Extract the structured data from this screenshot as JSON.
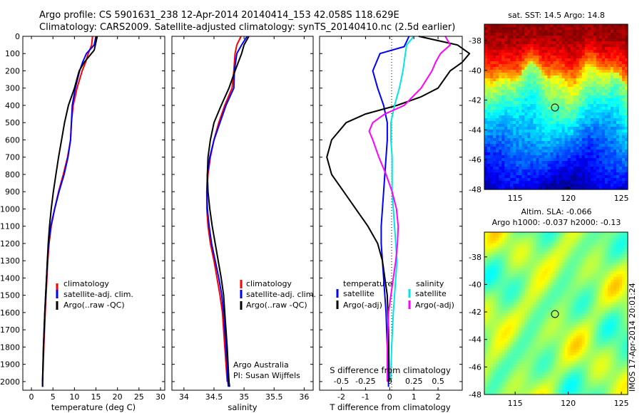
{
  "title_line1": "Argo profile: CS 5901631_238 12-Apr-2014 20140414_153 42.058S 118.629E",
  "title_line2": "Climatology: CARS2009. Satellite-adjusted climatology: synTS_20140410.nc (2.5d earlier)",
  "side_stamp": "IMOS 17-Apr-2014 20:01:24",
  "colors": {
    "climatology": "#ff0000",
    "satellite": "#0000ff",
    "argo": "#000000",
    "salinity_satellite": "#00e5e5",
    "salinity_argo": "#ff00ff"
  },
  "chart_data": [
    {
      "type": "line",
      "panel": "temperature",
      "xlabel": "temperature (deg C)",
      "xlim": [
        -2,
        31
      ],
      "ylim": [
        0,
        2050
      ],
      "xticks": [
        "0",
        "5",
        "10",
        "15",
        "20",
        "25",
        "30"
      ],
      "xtick_values": [
        0,
        5,
        10,
        15,
        20,
        25,
        30
      ],
      "yticks": [
        "0",
        "100",
        "200",
        "300",
        "400",
        "500",
        "600",
        "700",
        "800",
        "900",
        "1000",
        "1100",
        "1200",
        "1300",
        "1400",
        "1500",
        "1600",
        "1700",
        "1800",
        "1900",
        "2000"
      ],
      "ytick_values": [
        0,
        100,
        200,
        300,
        400,
        500,
        600,
        700,
        800,
        900,
        1000,
        1100,
        1200,
        1300,
        1400,
        1500,
        1600,
        1700,
        1800,
        1900,
        2000
      ],
      "legend": [
        "climatology",
        "satellite-adj. clim.",
        "Argo(..raw -QC)"
      ],
      "series": [
        {
          "name": "climatology",
          "color": "#ff0000",
          "depth": [
            0,
            50,
            100,
            150,
            200,
            300,
            400,
            500,
            600,
            700,
            800,
            900,
            1000,
            1100,
            1200,
            1300,
            1400,
            1500,
            1600,
            1800,
            2000
          ],
          "values": [
            14.2,
            14.0,
            13.2,
            12.6,
            11.8,
            10.6,
            9.7,
            9.3,
            9.1,
            8.4,
            7.4,
            6.3,
            5.4,
            4.6,
            4.1,
            3.8,
            3.6,
            3.4,
            3.2,
            2.9,
            2.6
          ]
        },
        {
          "name": "satellite-adj. clim.",
          "color": "#0000ff",
          "depth": [
            0,
            50,
            100,
            150,
            200,
            300,
            400,
            500,
            600,
            700,
            800,
            900,
            1000,
            1100,
            1200,
            1300,
            1400,
            1500,
            1600,
            1800,
            2000,
            2030
          ],
          "values": [
            15.0,
            14.6,
            12.8,
            11.9,
            11.2,
            10.2,
            9.5,
            9.3,
            9.1,
            8.5,
            7.6,
            6.4,
            5.4,
            4.5,
            4.0,
            3.7,
            3.5,
            3.3,
            3.1,
            2.8,
            2.6,
            2.6
          ]
        },
        {
          "name": "Argo(..raw -QC)",
          "color": "#000000",
          "depth": [
            0,
            80,
            150,
            200,
            300,
            400,
            500,
            600,
            700,
            800,
            900,
            1000,
            1100,
            1200,
            1300,
            1400,
            1500,
            1600,
            1800,
            2000,
            2030
          ],
          "values": [
            15.3,
            14.6,
            12.3,
            11.1,
            10.0,
            8.6,
            7.7,
            7.0,
            6.3,
            5.7,
            5.1,
            4.6,
            4.2,
            3.9,
            3.7,
            3.5,
            3.3,
            3.1,
            2.8,
            2.6,
            2.6
          ]
        }
      ]
    },
    {
      "type": "line",
      "panel": "salinity",
      "xlabel": "salinity",
      "xlim": [
        33.8,
        36.15
      ],
      "ylim": [
        0,
        2050
      ],
      "xticks": [
        "34",
        "34.5",
        "35",
        "35.5",
        "36"
      ],
      "xtick_values": [
        34,
        34.5,
        35,
        35.5,
        36
      ],
      "legend": [
        "climatology",
        "satellite-adj. clim.",
        "Argo(..raw -QC)"
      ],
      "annotations": [
        "Argo Australia",
        "PI: Susan Wijffels"
      ],
      "series": [
        {
          "name": "climatology",
          "color": "#ff0000",
          "depth": [
            0,
            50,
            100,
            200,
            300,
            400,
            500,
            600,
            700,
            800,
            900,
            1000,
            1100,
            1200,
            1300,
            1400,
            1500,
            1600,
            1800,
            2000
          ],
          "values": [
            34.95,
            34.88,
            34.85,
            34.83,
            34.8,
            34.68,
            34.58,
            34.5,
            34.44,
            34.4,
            34.38,
            34.38,
            34.4,
            34.44,
            34.5,
            34.55,
            34.6,
            34.64,
            34.68,
            34.72
          ]
        },
        {
          "name": "satellite-adj. clim.",
          "color": "#0000ff",
          "depth": [
            0,
            50,
            100,
            200,
            300,
            400,
            500,
            600,
            700,
            800,
            900,
            1000,
            1100,
            1200,
            1300,
            1400,
            1500,
            1600,
            1800,
            2000,
            2030
          ],
          "values": [
            35.05,
            34.96,
            34.88,
            34.84,
            34.83,
            34.7,
            34.6,
            34.5,
            34.43,
            34.39,
            34.38,
            34.39,
            34.42,
            34.46,
            34.52,
            34.58,
            34.63,
            34.66,
            34.7,
            34.73,
            34.74
          ]
        },
        {
          "name": "Argo(..raw -QC)",
          "color": "#000000",
          "depth": [
            0,
            50,
            100,
            200,
            300,
            400,
            500,
            600,
            700,
            800,
            900,
            1000,
            1100,
            1200,
            1300,
            1400,
            1500,
            1600,
            1800,
            2000,
            2030
          ],
          "values": [
            35.08,
            35.0,
            34.96,
            34.85,
            34.75,
            34.62,
            34.5,
            34.44,
            34.4,
            34.39,
            34.4,
            34.43,
            34.47,
            34.52,
            34.57,
            34.62,
            34.66,
            34.68,
            34.72,
            34.75,
            34.76
          ]
        }
      ]
    },
    {
      "type": "line",
      "panel": "difference",
      "xlabel": "T difference from climatology",
      "xlabel_top": "S difference from climatology",
      "xlim": [
        -2.9,
        3.0
      ],
      "ylim": [
        0,
        2050
      ],
      "xticks": [
        "-2",
        "-1",
        "0",
        "1",
        "2"
      ],
      "xtick_values": [
        -2,
        -1,
        0,
        1,
        2
      ],
      "sticks_top": [
        "-0.5",
        "-0.25",
        "0",
        "0.25",
        "0.5"
      ],
      "stick_positions": [
        -2,
        -1,
        0,
        1,
        2
      ],
      "legend_titles": [
        "temperature",
        "salinity"
      ],
      "legend": [
        "satellite",
        "Argo(-adj)",
        "satellite",
        "Argo(-adj)"
      ],
      "series": [
        {
          "name": "temperature satellite",
          "color": "#0000ff",
          "depth": [
            0,
            60,
            100,
            200,
            300,
            400,
            500,
            600,
            700,
            800,
            900,
            1000,
            1100,
            1200,
            1300,
            1400,
            1500,
            1600,
            1800,
            2000,
            2030
          ],
          "values": [
            0.8,
            0.6,
            -0.4,
            -0.7,
            -0.5,
            -0.25,
            -0.1,
            -0.1,
            -0.15,
            -0.2,
            -0.25,
            -0.3,
            -0.35,
            -0.35,
            -0.3,
            -0.25,
            -0.2,
            -0.15,
            -0.1,
            -0.05,
            -0.05
          ]
        },
        {
          "name": "temperature Argo(-adj)",
          "color": "#000000",
          "depth": [
            0,
            50,
            100,
            150,
            200,
            300,
            350,
            400,
            450,
            500,
            600,
            700,
            800,
            900,
            1000,
            1100,
            1200,
            1300,
            1400,
            1500,
            1700,
            2000
          ],
          "values": [
            1.2,
            2.8,
            3.3,
            3.0,
            2.5,
            2.0,
            1.3,
            0.3,
            -1.0,
            -1.8,
            -2.4,
            -2.6,
            -2.4,
            -1.9,
            -1.4,
            -0.9,
            -0.5,
            -0.3,
            -0.2,
            -0.1,
            -0.05,
            -0.02
          ]
        },
        {
          "name": "salinity satellite",
          "color": "#00e5e5",
          "depth": [
            0,
            50,
            100,
            200,
            300,
            400,
            500,
            600,
            700,
            800,
            900,
            1000,
            1100,
            1200,
            1300,
            1400,
            1500,
            1600,
            1800,
            2000
          ],
          "values": [
            1.0,
            0.7,
            0.65,
            0.55,
            0.4,
            0.2,
            0.05,
            0.05,
            0.1,
            0.1,
            0.1,
            0.15,
            0.2,
            0.25,
            0.3,
            0.25,
            0.2,
            0.15,
            0.08,
            0.04
          ]
        },
        {
          "name": "salinity Argo(-adj)",
          "color": "#ff00ff",
          "depth": [
            0,
            50,
            100,
            150,
            200,
            300,
            400,
            450,
            500,
            550,
            600,
            700,
            800,
            900,
            1000,
            1100,
            1200,
            1300,
            1400,
            1500,
            1600,
            1800,
            2000
          ],
          "values": [
            2.3,
            2.5,
            2.1,
            1.9,
            1.75,
            1.3,
            0.6,
            -0.2,
            -0.7,
            -0.85,
            -0.7,
            -0.45,
            -0.15,
            0.1,
            0.28,
            0.35,
            0.32,
            0.25,
            0.15,
            0.05,
            -0.05,
            -0.1,
            -0.1
          ]
        }
      ]
    },
    {
      "type": "heatmap",
      "panel": "sst-map",
      "title": "sat. SST: 14.5 Argo: 14.8",
      "xlim": [
        112.1,
        125.6
      ],
      "ylim": [
        -48,
        -36.9
      ],
      "xticks": [
        "115",
        "120",
        "125"
      ],
      "xtick_values": [
        115,
        120,
        125
      ],
      "yticks": [
        "-38",
        "-40",
        "-42",
        "-44",
        "-46",
        "-48"
      ],
      "ytick_values": [
        -38,
        -40,
        -42,
        -44,
        -46,
        -48
      ],
      "marker": {
        "lon": 118.629,
        "lat": -42.058
      },
      "colormap": "jet"
    },
    {
      "type": "heatmap",
      "panel": "sla-map",
      "title": "Altim. SLA: -0.066",
      "subtitle": "Argo h1000: -0.037 h2000: -0.13",
      "xlim": [
        112.1,
        125.6
      ],
      "ylim": [
        -48,
        -36.2
      ],
      "xticks": [
        "115",
        "120",
        "125"
      ],
      "xtick_values": [
        115,
        120,
        125
      ],
      "yticks": [
        "-38",
        "-40",
        "-42",
        "-44",
        "-46",
        "-48"
      ],
      "ytick_values": [
        -38,
        -40,
        -42,
        -44,
        -46,
        -48
      ],
      "marker": {
        "lon": 118.629,
        "lat": -42.058
      },
      "colormap": "jet"
    }
  ]
}
